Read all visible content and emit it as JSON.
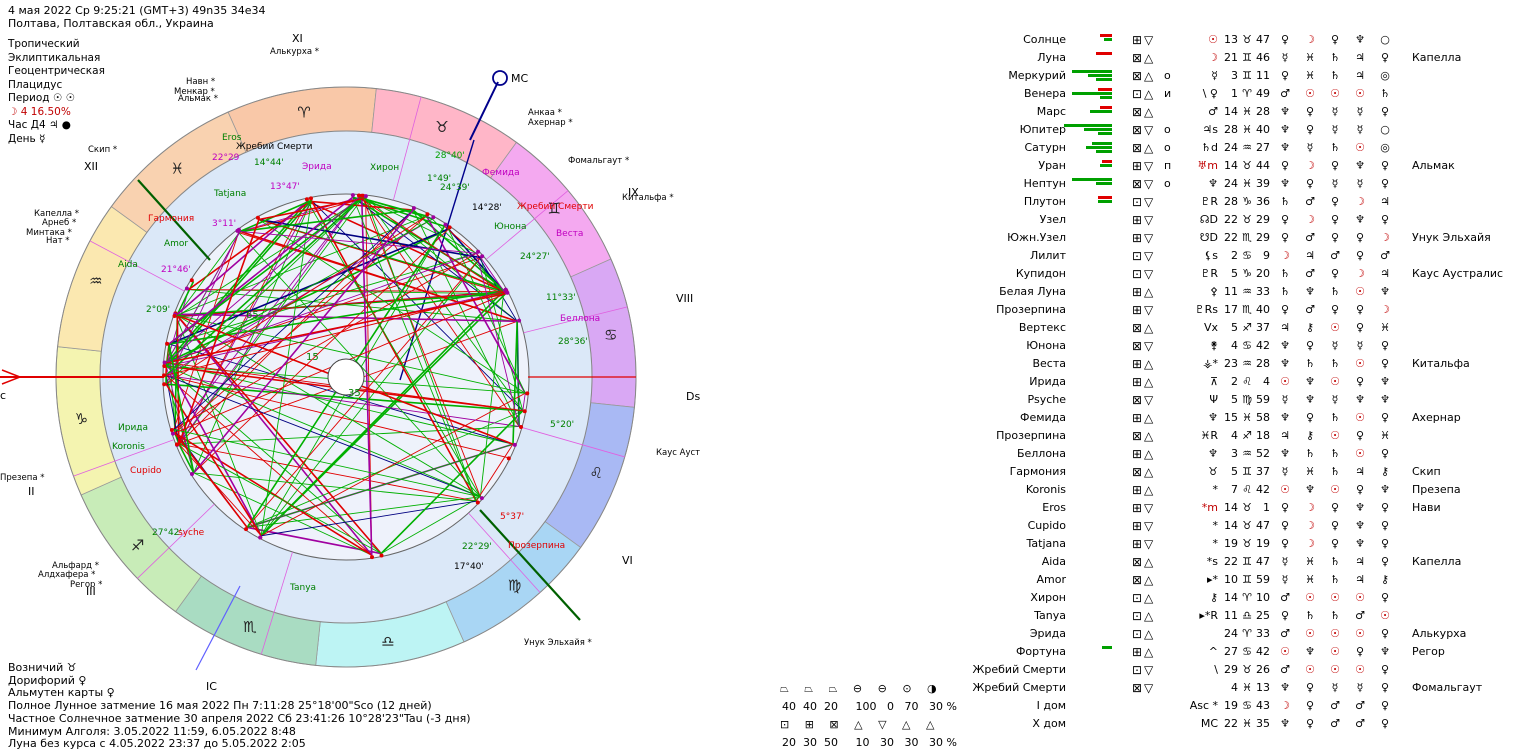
{
  "header": {
    "line1": "4 мая 2022  Ср   9:25:21 (GMT+3) 49n35  34e34",
    "line2": "Полтава, Полтавская обл., Украина"
  },
  "settings": [
    "Тропический",
    "Эклиптикальная",
    "Геоцентрическая",
    "Плацидус"
  ],
  "period": "Период ☉ ☉",
  "moon_phase": "☽  4 16.50%",
  "hour": "Час Д4 ♃ ●",
  "day": "День ☿",
  "chart": {
    "houses": [
      "XI",
      "IX",
      "VIII",
      "Dsc",
      "VI",
      "IC",
      "III",
      "II",
      "XII"
    ],
    "mc_label": "MC",
    "asc_label": "c",
    "stars_outer": [
      "Алькурха",
      "Анкаа",
      "Ахернар",
      "Фомальгаут",
      "Китальфа",
      "Каус Аустралис",
      "Унук Эльхайя",
      "Навн",
      "Менкар",
      "Альмак",
      "Скип",
      "Капелла",
      "Арнеб",
      "Минтака",
      "Нат",
      "Презепа",
      "Альфард",
      "Алдхафера",
      "Регор"
    ],
    "planet_labels": [
      {
        "t": "Eros",
        "c": "#008000"
      },
      {
        "t": "Жребий Смерти",
        "c": "#000"
      },
      {
        "t": "22°29",
        "c": "#c000c0"
      },
      {
        "t": "14°44'",
        "c": "#008000"
      },
      {
        "t": "Эрида",
        "c": "#c000c0"
      },
      {
        "t": "Хирон",
        "c": "#008000"
      },
      {
        "t": "28°40'",
        "c": "#00a000"
      },
      {
        "t": "Фемида",
        "c": "#c000c0"
      },
      {
        "t": "Tatjana",
        "c": "#008000"
      },
      {
        "t": "13°47'",
        "c": "#c000c0"
      },
      {
        "t": "1°49'",
        "c": "#008000"
      },
      {
        "t": "24°39'",
        "c": "#008000"
      },
      {
        "t": "14°28'",
        "c": "#000"
      },
      {
        "t": "Жребий Смерти",
        "c": "#e00000"
      },
      {
        "t": "Гармония",
        "c": "#e00000"
      },
      {
        "t": "3°11'",
        "c": "#c000c0"
      },
      {
        "t": "Юнона",
        "c": "#008000"
      },
      {
        "t": "Веста",
        "c": "#c000c0"
      },
      {
        "t": "Amor",
        "c": "#008000"
      },
      {
        "t": "24°27'",
        "c": "#008000"
      },
      {
        "t": "Aida",
        "c": "#008000"
      },
      {
        "t": "21°46'",
        "c": "#c000c0"
      },
      {
        "t": "11°33'",
        "c": "#008000"
      },
      {
        "t": "2°09'",
        "c": "#008000"
      },
      {
        "t": "Беллона",
        "c": "#c000c0"
      },
      {
        "t": "28°36'",
        "c": "#008000"
      },
      {
        "t": "Ирида",
        "c": "#008000"
      },
      {
        "t": "5°20'",
        "c": "#008000"
      },
      {
        "t": "Koronis",
        "c": "#008000"
      },
      {
        "t": "Cupido",
        "c": "#e00000"
      },
      {
        "t": "5°37'",
        "c": "#e00000"
      },
      {
        "t": "27°42'",
        "c": "#008000"
      },
      {
        "t": "syche",
        "c": "#e00000"
      },
      {
        "t": "22°29'",
        "c": "#008000"
      },
      {
        "t": "Прозерпина",
        "c": "#e00000"
      },
      {
        "t": "17°40'",
        "c": "#000"
      },
      {
        "t": "Tanya",
        "c": "#008000"
      }
    ],
    "aspect_nums": [
      "65",
      "15",
      "35"
    ],
    "sign_glyphs": [
      "♈",
      "♉",
      "♊",
      "♋",
      "♌",
      "♍",
      "♎",
      "♏",
      "♐",
      "♑",
      "♒",
      "♓"
    ],
    "sector_colors": [
      "#f9c8a8",
      "#ffb6c8",
      "#f4a9f0",
      "#d9a8f4",
      "#a9b9f4",
      "#a9d6f4",
      "#bdf4f4",
      "#a9dcc2",
      "#c8ecb8",
      "#f4f4b0",
      "#fbe8b0",
      "#f9d2b0"
    ]
  },
  "bottom": [
    "Возничий ♉",
    "Дорифорий ♀",
    "Альмутен карты ♀",
    "Полное Лунное затмение 16 мая 2022 Пн  7:11:28 25°18'00\"Sco (12 дней)",
    "Частное Солнечное затмение 30 апреля 2022 Сб 23:41:26 10°28'23\"Tau (-3 дня)",
    "Минимум Алголя: 3.05.2022 11:59,  6.05.2022  8:48",
    "Луна без курса с 4.05.2022 23:37 до 5.05.2022  2:05"
  ],
  "table": [
    {
      "n": "Солнце",
      "b": [
        [
          12,
          "#e00000"
        ],
        [
          8,
          "#00a000"
        ]
      ],
      "q": "⊞▽",
      "a": "",
      "s": "☉",
      "d": "13",
      "z": "♉",
      "m": "47",
      "r": [
        "♀",
        "☽",
        "♀",
        "♆",
        "○"
      ],
      "st": ""
    },
    {
      "n": "Луна",
      "b": [
        [
          16,
          "#e00000"
        ]
      ],
      "q": "⊠△",
      "a": "",
      "s": "☽",
      "d": "21",
      "z": "♊",
      "m": "46",
      "r": [
        "☿",
        "♓",
        "♄",
        "♃",
        "♀"
      ],
      "st": "Капелла"
    },
    {
      "n": "Меркурий",
      "b": [
        [
          40,
          "#00a000"
        ],
        [
          24,
          "#00a000"
        ],
        [
          16,
          "#00a000"
        ]
      ],
      "q": "⊠△",
      "a": "о",
      "s": "☿",
      "d": "3",
      "z": "♊",
      "m": "11",
      "r": [
        "♀",
        "♓",
        "♄",
        "♃",
        "◎"
      ],
      "st": ""
    },
    {
      "n": "Венера",
      "b": [
        [
          14,
          "#e00000"
        ],
        [
          40,
          "#00a000"
        ],
        [
          12,
          "#00a000"
        ]
      ],
      "q": "⊡△",
      "a": "и",
      "s": "\\ ♀",
      "d": "1",
      "z": "♈",
      "m": "49",
      "r": [
        "♂",
        "☉",
        "☉",
        "☉",
        "♄"
      ],
      "st": ""
    },
    {
      "n": "Марс",
      "b": [
        [
          12,
          "#e00000"
        ],
        [
          22,
          "#00a000"
        ]
      ],
      "q": "⊠△",
      "a": "",
      "s": "♂",
      "d": "14",
      "z": "♓",
      "m": "28",
      "r": [
        "♆",
        "♀",
        "☿",
        "☿",
        "♀"
      ],
      "st": ""
    },
    {
      "n": "Юпитер",
      "b": [
        [
          48,
          "#00a000"
        ],
        [
          28,
          "#00a000"
        ],
        [
          14,
          "#00a000"
        ]
      ],
      "q": "⊠▽",
      "a": "о",
      "s": "♃s",
      "d": "28",
      "z": "♓",
      "m": "40",
      "r": [
        "♆",
        "♀",
        "☿",
        "☿",
        "○"
      ],
      "st": ""
    },
    {
      "n": "Сатурн",
      "b": [
        [
          20,
          "#00a000"
        ],
        [
          26,
          "#00a000"
        ],
        [
          16,
          "#00a000"
        ]
      ],
      "q": "⊠△",
      "a": "о",
      "s": "♄d",
      "d": "24",
      "z": "♒",
      "m": "27",
      "r": [
        "♆",
        "☿",
        "♄",
        "☉",
        "◎"
      ],
      "st": ""
    },
    {
      "n": "Уран",
      "b": [
        [
          10,
          "#e00000"
        ],
        [
          12,
          "#00a000"
        ]
      ],
      "q": "⊞▽",
      "a": "п",
      "s": "♅m",
      "d": "14",
      "z": "♉",
      "m": "44",
      "r": [
        "♀",
        "☽",
        "♀",
        "♆",
        "♀"
      ],
      "st": "Альмак"
    },
    {
      "n": "Нептун",
      "b": [
        [
          40,
          "#00a000"
        ],
        [
          16,
          "#00a000"
        ]
      ],
      "q": "⊠▽",
      "a": "о",
      "s": "♆",
      "d": "24",
      "z": "♓",
      "m": "39",
      "r": [
        "♆",
        "♀",
        "☿",
        "☿",
        "♀"
      ],
      "st": ""
    },
    {
      "n": "Плутон",
      "b": [
        [
          14,
          "#e00000"
        ],
        [
          14,
          "#00a000"
        ]
      ],
      "q": "⊡▽",
      "a": "",
      "s": "♇R",
      "d": "28",
      "z": "♑",
      "m": "36",
      "r": [
        "♄",
        "♂",
        "♀",
        "☽",
        "♃"
      ],
      "st": ""
    },
    {
      "n": "Узел",
      "b": [],
      "q": "⊞▽",
      "a": "",
      "s": "☊D",
      "d": "22",
      "z": "♉",
      "m": "29",
      "r": [
        "♀",
        "☽",
        "♀",
        "♆",
        "♀"
      ],
      "st": ""
    },
    {
      "n": "Южн.Узел",
      "b": [],
      "q": "⊞▽",
      "a": "",
      "s": "☋D",
      "d": "22",
      "z": "♏",
      "m": "29",
      "r": [
        "♀",
        "♂",
        "♀",
        "♀",
        "☽"
      ],
      "st": "Унук Эльхайя"
    },
    {
      "n": "Лилит",
      "b": [],
      "q": "⊡▽",
      "a": "",
      "s": "⚸s",
      "d": "2",
      "z": "♋",
      "m": "9",
      "r": [
        "☽",
        "♃",
        "♂",
        "♀",
        "♂"
      ],
      "st": ""
    },
    {
      "n": "Купидон",
      "b": [],
      "q": "⊡▽",
      "a": "",
      "s": "♇R",
      "d": "5",
      "z": "♑",
      "m": "20",
      "r": [
        "♄",
        "♂",
        "♀",
        "☽",
        "♃"
      ],
      "st": "Каус Аустралис"
    },
    {
      "n": "Белая Луна",
      "b": [],
      "q": "⊞△",
      "a": "",
      "s": "⚴",
      "d": "11",
      "z": "♒",
      "m": "33",
      "r": [
        "♄",
        "♆",
        "♄",
        "☉",
        "♆"
      ],
      "st": ""
    },
    {
      "n": "Прозерпина",
      "b": [],
      "q": "⊞▽",
      "a": "",
      "s": "♇Rs",
      "d": "17",
      "z": "♏",
      "m": "40",
      "r": [
        "♀",
        "♂",
        "♀",
        "♀",
        "☽"
      ],
      "st": ""
    },
    {
      "n": "Вертекс",
      "b": [],
      "q": "⊠△",
      "a": "",
      "s": "Vx",
      "d": "5",
      "z": "♐",
      "m": "37",
      "r": [
        "♃",
        "⚷",
        "☉",
        "♀",
        "♓"
      ],
      "st": ""
    },
    {
      "n": "Юнона",
      "b": [],
      "q": "⊠▽",
      "a": "",
      "s": "⚵",
      "d": "4",
      "z": "♋",
      "m": "42",
      "r": [
        "♆",
        "♀",
        "☿",
        "☿",
        "♀"
      ],
      "st": ""
    },
    {
      "n": "Веста",
      "b": [],
      "q": "⊞△",
      "a": "",
      "s": "⚶*",
      "d": "23",
      "z": "♒",
      "m": "28",
      "r": [
        "♆",
        "♄",
        "♄",
        "☉",
        "♀"
      ],
      "st": "Китальфа"
    },
    {
      "n": "Ирида",
      "b": [],
      "q": "⊞△",
      "a": "",
      "s": "⊼",
      "d": "2",
      "z": "♌",
      "m": "4",
      "r": [
        "☉",
        "♆",
        "☉",
        "♀",
        "♆"
      ],
      "st": ""
    },
    {
      "n": "Psyche",
      "b": [],
      "q": "⊠▽",
      "a": "",
      "s": "Ψ",
      "d": "5",
      "z": "♍",
      "m": "59",
      "r": [
        "☿",
        "♆",
        "☿",
        "♆",
        "♆"
      ],
      "st": ""
    },
    {
      "n": "Фемида",
      "b": [],
      "q": "⊞△",
      "a": "",
      "s": "♆",
      "d": "15",
      "z": "♓",
      "m": "58",
      "r": [
        "♆",
        "♀",
        "♄",
        "☉",
        "♀"
      ],
      "st": "Ахернар"
    },
    {
      "n": "Прозерпина",
      "b": [],
      "q": "⊠△",
      "a": "",
      "s": "♓R",
      "d": "4",
      "z": "♐",
      "m": "18",
      "r": [
        "♃",
        "⚷",
        "☉",
        "♀",
        "♓"
      ],
      "st": ""
    },
    {
      "n": "Беллона",
      "b": [],
      "q": "⊞△",
      "a": "",
      "s": "♆",
      "d": "3",
      "z": "♒",
      "m": "52",
      "r": [
        "♆",
        "♄",
        "♄",
        "☉",
        "♀"
      ],
      "st": ""
    },
    {
      "n": "Гармония",
      "b": [],
      "q": "⊠△",
      "a": "",
      "s": "♉",
      "d": "5",
      "z": "♊",
      "m": "37",
      "r": [
        "☿",
        "♓",
        "♄",
        "♃",
        "⚷"
      ],
      "st": "Скип"
    },
    {
      "n": "Koronis",
      "b": [],
      "q": "⊞△",
      "a": "",
      "s": "*",
      "d": "7",
      "z": "♌",
      "m": "42",
      "r": [
        "☉",
        "♆",
        "☉",
        "♀",
        "♆"
      ],
      "st": "Презепа"
    },
    {
      "n": "Eros",
      "b": [],
      "q": "⊞▽",
      "a": "",
      "s": "*m",
      "d": "14",
      "z": "♉",
      "m": "1",
      "r": [
        "♀",
        "☽",
        "♀",
        "♆",
        "♀"
      ],
      "st": "Нави"
    },
    {
      "n": "Cupido",
      "b": [],
      "q": "⊞▽",
      "a": "",
      "s": "*",
      "d": "14",
      "z": "♉",
      "m": "47",
      "r": [
        "♀",
        "☽",
        "♀",
        "♆",
        "♀"
      ],
      "st": ""
    },
    {
      "n": "Tatjana",
      "b": [],
      "q": "⊞▽",
      "a": "",
      "s": "*",
      "d": "19",
      "z": "♉",
      "m": "19",
      "r": [
        "♀",
        "☽",
        "♀",
        "♆",
        "♀"
      ],
      "st": ""
    },
    {
      "n": "Aida",
      "b": [],
      "q": "⊠△",
      "a": "",
      "s": "*s",
      "d": "22",
      "z": "♊",
      "m": "47",
      "r": [
        "☿",
        "♓",
        "♄",
        "♃",
        "♀"
      ],
      "st": "Капелла"
    },
    {
      "n": "Amor",
      "b": [],
      "q": "⊠△",
      "a": "",
      "s": "▸*",
      "d": "10",
      "z": "♊",
      "m": "59",
      "r": [
        "☿",
        "♓",
        "♄",
        "♃",
        "⚷"
      ],
      "st": ""
    },
    {
      "n": "Хирон",
      "b": [],
      "q": "⊡△",
      "a": "",
      "s": "⚷",
      "d": "14",
      "z": "♈",
      "m": "10",
      "r": [
        "♂",
        "☉",
        "☉",
        "☉",
        "♀"
      ],
      "st": ""
    },
    {
      "n": "Tanya",
      "b": [],
      "q": "⊡△",
      "a": "",
      "s": "▸*R",
      "d": "11",
      "z": "♎",
      "m": "25",
      "r": [
        "♀",
        "♄",
        "♄",
        "♂",
        "☉"
      ],
      "st": ""
    },
    {
      "n": "Эрида",
      "b": [],
      "q": "⊡△",
      "a": "",
      "s": "",
      "d": "24",
      "z": "♈",
      "m": "33",
      "r": [
        "♂",
        "☉",
        "☉",
        "☉",
        "♀"
      ],
      "st": "Алькурха"
    },
    {
      "n": "Фортуна",
      "b": [
        [
          10,
          "#00a000"
        ]
      ],
      "q": "⊞△",
      "a": "",
      "s": "^",
      "d": "27",
      "z": "♋",
      "m": "42",
      "r": [
        "☉",
        "♆",
        "☉",
        "♀",
        "♆"
      ],
      "st": "Регор"
    },
    {
      "n": "Жребий Смерти",
      "b": [],
      "q": "⊡▽",
      "a": "",
      "s": "\\",
      "d": "29",
      "z": "♉",
      "m": "26",
      "r": [
        "♂",
        "☉",
        "☉",
        "☉",
        "♀"
      ],
      "st": ""
    },
    {
      "n": "Жребий Смерти",
      "b": [],
      "q": "⊠▽",
      "a": "",
      "s": "",
      "d": "4",
      "z": "♓",
      "m": "13",
      "r": [
        "♆",
        "♀",
        "☿",
        "☿",
        "♀"
      ],
      "st": "Фомальгаут"
    },
    {
      "n": "I дом",
      "b": [],
      "q": "",
      "a": "",
      "s": "Asc *",
      "d": "19",
      "z": "♋",
      "m": "43",
      "r": [
        "☽",
        "♀",
        "♂",
        "♂",
        "♀"
      ],
      "st": ""
    },
    {
      "n": "X дом",
      "b": [],
      "q": "",
      "a": "",
      "s": "MC",
      "d": "22",
      "z": "♓",
      "m": "35",
      "r": [
        "♆",
        "♀",
        "♂",
        "♂",
        "♀"
      ],
      "st": ""
    }
  ],
  "legend": {
    "row1_icons": "⏢ ⏢ ⏢   ⊖ ⊖ ⊙ ◑",
    "row1_vals": [
      "40",
      "40",
      "20",
      "100",
      "0",
      "70",
      "30 %"
    ],
    "row2_icons": "⊡ ⊞ ⊠   △ ▽ △ △",
    "row2_vals": [
      "20",
      "30",
      "50",
      "10",
      "30",
      "30",
      "30 %"
    ]
  }
}
